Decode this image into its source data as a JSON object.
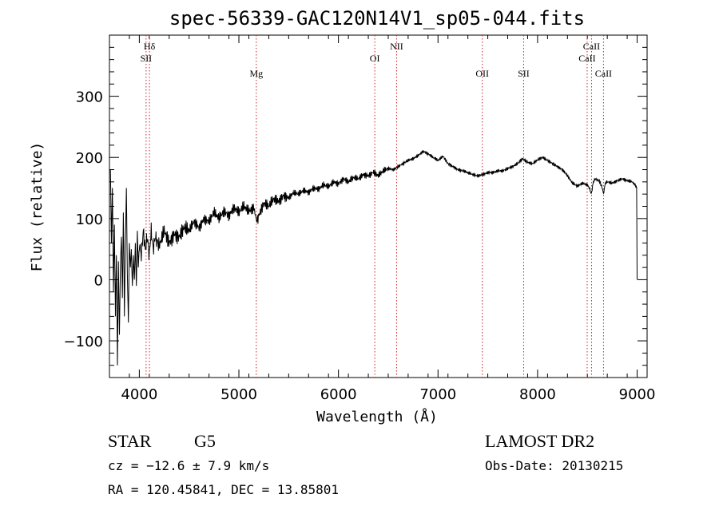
{
  "chart_data": {
    "type": "line",
    "title": "spec-56339-GAC120N14V1_sp05-044.fits",
    "xlabel": "Wavelength (Å)",
    "ylabel": "Flux (relative)",
    "xlim": [
      3700,
      9100
    ],
    "ylim": [
      -160,
      400
    ],
    "xticks": [
      4000,
      5000,
      6000,
      7000,
      8000,
      9000
    ],
    "yticks": [
      -100,
      0,
      100,
      200,
      300
    ],
    "ytick_labels": [
      "−100",
      "0",
      "100",
      "200",
      "300"
    ],
    "grid": false,
    "series": [
      {
        "points": [
          [
            3710,
            180
          ],
          [
            3720,
            60
          ],
          [
            3730,
            150
          ],
          [
            3740,
            -20
          ],
          [
            3750,
            90
          ],
          [
            3760,
            -60
          ],
          [
            3770,
            40
          ],
          [
            3780,
            -140
          ],
          [
            3790,
            30
          ],
          [
            3800,
            -90
          ],
          [
            3810,
            20
          ],
          [
            3820,
            70
          ],
          [
            3830,
            -30
          ],
          [
            3840,
            110
          ],
          [
            3850,
            -60
          ],
          [
            3860,
            60
          ],
          [
            3870,
            150
          ],
          [
            3880,
            10
          ],
          [
            3890,
            -70
          ],
          [
            3900,
            60
          ],
          [
            3910,
            20
          ],
          [
            3920,
            50
          ],
          [
            3930,
            -10
          ],
          [
            3940,
            40
          ],
          [
            3950,
            0
          ],
          [
            3960,
            60
          ],
          [
            3970,
            -10
          ],
          [
            3980,
            80
          ],
          [
            3990,
            20
          ],
          [
            4000,
            60
          ],
          [
            4020,
            40
          ],
          [
            4040,
            80
          ],
          [
            4060,
            50
          ],
          [
            4080,
            70
          ],
          [
            4100,
            40
          ],
          [
            4120,
            80
          ],
          [
            4140,
            50
          ],
          [
            4160,
            70
          ],
          [
            4200,
            55
          ],
          [
            4250,
            80
          ],
          [
            4300,
            60
          ],
          [
            4350,
            75
          ],
          [
            4400,
            70
          ],
          [
            4450,
            85
          ],
          [
            4500,
            80
          ],
          [
            4550,
            95
          ],
          [
            4600,
            85
          ],
          [
            4650,
            100
          ],
          [
            4700,
            95
          ],
          [
            4750,
            110
          ],
          [
            4800,
            100
          ],
          [
            4850,
            112
          ],
          [
            4900,
            105
          ],
          [
            4950,
            118
          ],
          [
            5000,
            110
          ],
          [
            5050,
            120
          ],
          [
            5100,
            112
          ],
          [
            5150,
            118
          ],
          [
            5180,
            95
          ],
          [
            5200,
            105
          ],
          [
            5250,
            125
          ],
          [
            5300,
            120
          ],
          [
            5350,
            132
          ],
          [
            5400,
            128
          ],
          [
            5450,
            138
          ],
          [
            5500,
            134
          ],
          [
            5550,
            142
          ],
          [
            5600,
            140
          ],
          [
            5650,
            146
          ],
          [
            5700,
            143
          ],
          [
            5750,
            150
          ],
          [
            5800,
            148
          ],
          [
            5850,
            155
          ],
          [
            5900,
            152
          ],
          [
            5950,
            160
          ],
          [
            6000,
            157
          ],
          [
            6050,
            165
          ],
          [
            6100,
            160
          ],
          [
            6150,
            167
          ],
          [
            6200,
            165
          ],
          [
            6250,
            172
          ],
          [
            6300,
            170
          ],
          [
            6350,
            176
          ],
          [
            6400,
            170
          ],
          [
            6450,
            178
          ],
          [
            6500,
            182
          ],
          [
            6550,
            180
          ],
          [
            6600,
            185
          ],
          [
            6650,
            190
          ],
          [
            6700,
            195
          ],
          [
            6750,
            198
          ],
          [
            6800,
            203
          ],
          [
            6850,
            210
          ],
          [
            6900,
            206
          ],
          [
            6950,
            200
          ],
          [
            7000,
            195
          ],
          [
            7050,
            202
          ],
          [
            7100,
            190
          ],
          [
            7150,
            185
          ],
          [
            7200,
            180
          ],
          [
            7250,
            178
          ],
          [
            7300,
            175
          ],
          [
            7350,
            172
          ],
          [
            7400,
            170
          ],
          [
            7450,
            172
          ],
          [
            7500,
            175
          ],
          [
            7550,
            175
          ],
          [
            7600,
            178
          ],
          [
            7650,
            178
          ],
          [
            7700,
            182
          ],
          [
            7750,
            185
          ],
          [
            7800,
            190
          ],
          [
            7850,
            198
          ],
          [
            7900,
            192
          ],
          [
            7950,
            190
          ],
          [
            8000,
            196
          ],
          [
            8050,
            200
          ],
          [
            8100,
            195
          ],
          [
            8150,
            190
          ],
          [
            8200,
            185
          ],
          [
            8250,
            180
          ],
          [
            8300,
            170
          ],
          [
            8350,
            158
          ],
          [
            8400,
            153
          ],
          [
            8450,
            158
          ],
          [
            8500,
            155
          ],
          [
            8520,
            150
          ],
          [
            8540,
            140
          ],
          [
            8560,
            160
          ],
          [
            8580,
            165
          ],
          [
            8600,
            163
          ],
          [
            8620,
            162
          ],
          [
            8650,
            150
          ],
          [
            8662,
            140
          ],
          [
            8680,
            158
          ],
          [
            8700,
            160
          ],
          [
            8750,
            158
          ],
          [
            8800,
            162
          ],
          [
            8850,
            165
          ],
          [
            8900,
            162
          ],
          [
            8950,
            160
          ],
          [
            8980,
            155
          ],
          [
            8995,
            150
          ],
          [
            9000,
            0
          ]
        ]
      }
    ],
    "lines": [
      {
        "label": "Hδ",
        "x": 4102,
        "row": 1
      },
      {
        "label": "SII",
        "x": 4068,
        "row": 2
      },
      {
        "label": "Mg",
        "x": 5175,
        "row": 3
      },
      {
        "label": "OI",
        "x": 6365,
        "row": 2
      },
      {
        "label": "NII",
        "x": 6584,
        "row": 1
      },
      {
        "label": "OII",
        "x": 7445,
        "row": 3
      },
      {
        "label": "SII",
        "x": 7860,
        "row": 3
      },
      {
        "label": "CaII",
        "x": 8542,
        "row": 1
      },
      {
        "label": "CaII",
        "x": 8498,
        "row": 2
      },
      {
        "label": "CaII",
        "x": 8662,
        "row": 3
      }
    ],
    "colors": {
      "spectrum": "#000000",
      "axes": "#000000",
      "lines": "#cc2222"
    }
  },
  "info": {
    "class": "STAR",
    "subclass": "G5",
    "survey": "LAMOST DR2",
    "cz": "cz = −12.6 ± 7.9 km/s",
    "obs_date": "Obs-Date: 20130215",
    "radec": "RA = 120.45841, DEC =  13.85801"
  }
}
